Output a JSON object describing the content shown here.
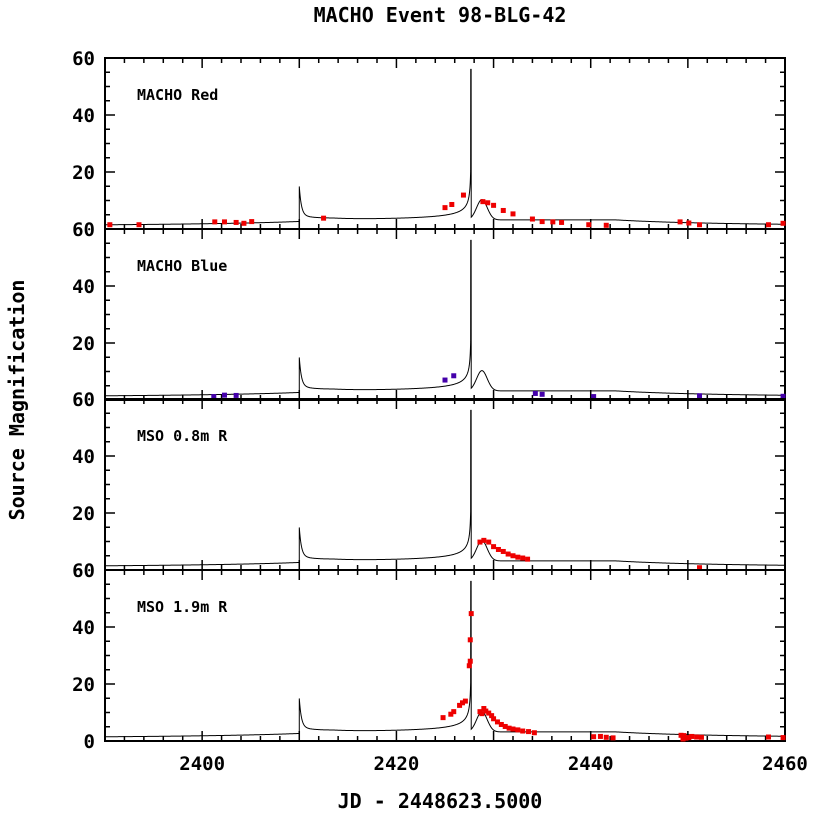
{
  "chart_data": {
    "type": "scatter",
    "title": "MACHO Event 98-BLG-42",
    "xlabel": "JD - 2448623.5000",
    "ylabel": "Source Magnification",
    "xlim": [
      2390,
      2460
    ],
    "ylim": [
      0,
      60
    ],
    "x_ticks": [
      "2400",
      "2420",
      "2440",
      "2460"
    ],
    "y_ticks": [
      "0",
      "20",
      "40",
      "60"
    ],
    "colors": {
      "red": "#ee0000",
      "blue": "#4400aa",
      "model": "#000000"
    },
    "model_curve": {
      "t0": 2428.0,
      "u0": 0.02,
      "tE": 45.0,
      "caustic_1": {
        "x": 2410.0,
        "peak": 14.5
      },
      "caustic_2": {
        "x": 2427.7,
        "peak": 56.0
      },
      "bump": {
        "x": 2428.8,
        "peak": 10.3
      }
    },
    "panels": [
      {
        "label": "MACHO Red",
        "color": "#ee0000",
        "points": [
          [
            2390.5,
            1.5
          ],
          [
            2393.5,
            1.5
          ],
          [
            2401.3,
            2.5
          ],
          [
            2402.3,
            2.5
          ],
          [
            2403.5,
            2.3
          ],
          [
            2404.3,
            2.0
          ],
          [
            2405.1,
            2.6
          ],
          [
            2412.5,
            3.8
          ],
          [
            2425.0,
            7.5
          ],
          [
            2425.7,
            8.6
          ],
          [
            2426.9,
            11.9
          ],
          [
            2428.9,
            9.6
          ],
          [
            2429.4,
            9.2
          ],
          [
            2430.0,
            8.3
          ],
          [
            2431.0,
            6.5
          ],
          [
            2432.0,
            5.3
          ],
          [
            2434.0,
            3.5
          ],
          [
            2435.0,
            2.6
          ],
          [
            2436.1,
            2.5
          ],
          [
            2437.0,
            2.3
          ],
          [
            2439.8,
            1.5
          ],
          [
            2441.6,
            1.3
          ],
          [
            2449.2,
            2.5
          ],
          [
            2450.1,
            2.1
          ],
          [
            2451.2,
            1.5
          ],
          [
            2458.3,
            1.5
          ],
          [
            2459.8,
            2.0
          ]
        ]
      },
      {
        "label": "MACHO Blue",
        "color": "#4400aa",
        "points": [
          [
            2401.2,
            1.2
          ],
          [
            2402.3,
            1.7
          ],
          [
            2403.5,
            1.6
          ],
          [
            2425.0,
            7.0
          ],
          [
            2425.9,
            8.5
          ],
          [
            2434.3,
            2.3
          ],
          [
            2435.0,
            2.0
          ],
          [
            2440.3,
            1.2
          ],
          [
            2451.2,
            1.5
          ],
          [
            2459.8,
            1.3
          ]
        ]
      },
      {
        "label": "MSO 0.8m R",
        "color": "#ee0000",
        "points": [
          [
            2428.6,
            9.8
          ],
          [
            2429.0,
            10.4
          ],
          [
            2429.5,
            9.8
          ],
          [
            2430.0,
            8.2
          ],
          [
            2430.5,
            7.2
          ],
          [
            2431.0,
            6.5
          ],
          [
            2431.5,
            5.6
          ],
          [
            2432.0,
            5.0
          ],
          [
            2432.5,
            4.5
          ],
          [
            2433.0,
            4.2
          ],
          [
            2433.5,
            3.8
          ],
          [
            2451.2,
            0.8
          ]
        ]
      },
      {
        "label": "MSO 1.9m R",
        "color": "#ee0000",
        "points": [
          [
            2424.8,
            8.2
          ],
          [
            2425.6,
            9.4
          ],
          [
            2425.9,
            10.3
          ],
          [
            2426.5,
            12.5
          ],
          [
            2426.8,
            13.4
          ],
          [
            2427.1,
            14.0
          ],
          [
            2427.5,
            26.4
          ],
          [
            2427.6,
            28.0
          ],
          [
            2427.6,
            35.5
          ],
          [
            2427.7,
            44.7
          ],
          [
            2428.6,
            10.3
          ],
          [
            2428.8,
            9.6
          ],
          [
            2429.0,
            11.4
          ],
          [
            2429.2,
            10.5
          ],
          [
            2429.5,
            9.8
          ],
          [
            2429.8,
            8.9
          ],
          [
            2430.0,
            7.8
          ],
          [
            2430.4,
            6.7
          ],
          [
            2430.8,
            5.8
          ],
          [
            2431.2,
            5.1
          ],
          [
            2431.6,
            4.5
          ],
          [
            2432.0,
            4.2
          ],
          [
            2432.5,
            3.9
          ],
          [
            2433.0,
            3.5
          ],
          [
            2433.6,
            3.3
          ],
          [
            2434.2,
            2.9
          ],
          [
            2440.3,
            1.5
          ],
          [
            2441.0,
            1.6
          ],
          [
            2441.6,
            1.3
          ],
          [
            2442.3,
            1.1
          ],
          [
            2449.3,
            2.0
          ],
          [
            2449.5,
            0.7
          ],
          [
            2449.6,
            1.9
          ],
          [
            2449.8,
            1.0
          ],
          [
            2450.1,
            1.2
          ],
          [
            2450.4,
            1.6
          ],
          [
            2450.9,
            1.4
          ],
          [
            2451.4,
            1.3
          ],
          [
            2458.3,
            1.4
          ],
          [
            2459.8,
            1.2
          ]
        ]
      }
    ]
  }
}
